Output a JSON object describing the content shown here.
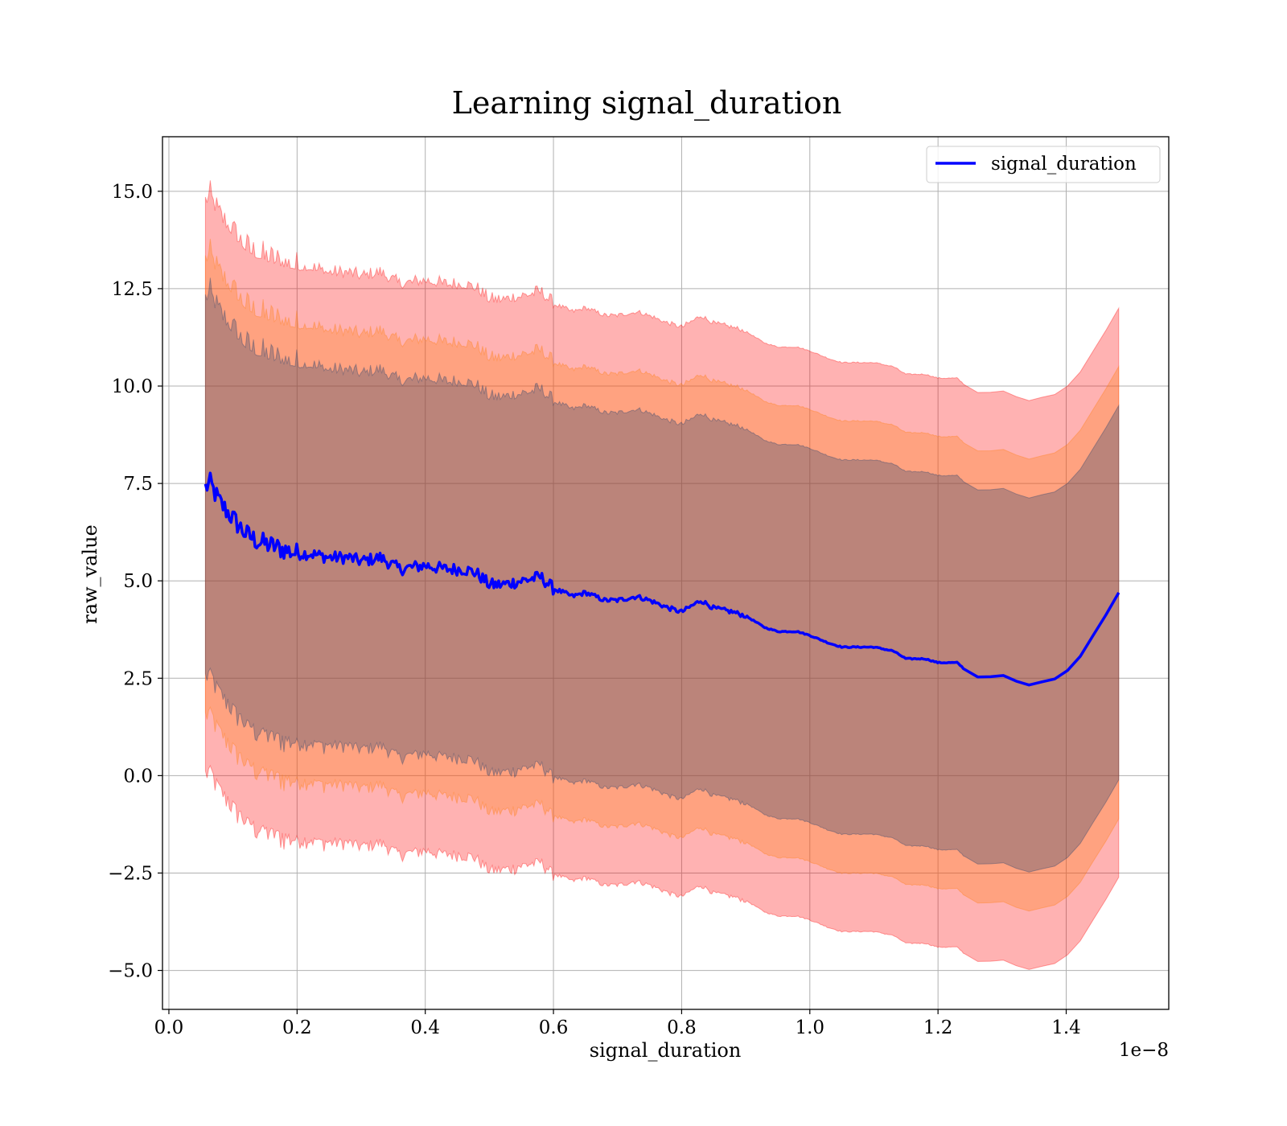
{
  "chart_data": {
    "type": "line",
    "title": "Learning signal_duration",
    "xlabel": "signal_duration",
    "ylabel": "raw_value",
    "x_offset_text": "1e−8",
    "xlim": [
      -0.01,
      1.56
    ],
    "ylim": [
      -6.0,
      16.4
    ],
    "grid": true,
    "legend_placement": "top-right",
    "x_ticks": [
      0.0,
      0.2,
      0.4,
      0.6,
      0.8,
      1.0,
      1.2,
      1.4
    ],
    "x_tick_labels": [
      "0.0",
      "0.2",
      "0.4",
      "0.6",
      "0.8",
      "1.0",
      "1.2",
      "1.4"
    ],
    "y_ticks": [
      15.0,
      12.5,
      10.0,
      7.5,
      5.0,
      2.5,
      0.0,
      -2.5,
      -5.0
    ],
    "y_tick_labels": [
      "15.0",
      "12.5",
      "10.0",
      "7.5",
      "5.0",
      "2.5",
      "0.0",
      "−2.5",
      "−5.0"
    ],
    "series": [
      {
        "name": "signal_duration",
        "color": "#0000ff",
        "x": [
          0.057,
          0.065,
          0.07,
          0.08,
          0.09,
          0.1,
          0.12,
          0.14,
          0.16,
          0.18,
          0.2,
          0.22,
          0.25,
          0.28,
          0.3,
          0.33,
          0.36,
          0.4,
          0.43,
          0.46,
          0.48,
          0.5,
          0.52,
          0.55,
          0.58,
          0.6,
          0.63,
          0.65,
          0.68,
          0.7,
          0.73,
          0.75,
          0.78,
          0.8,
          0.83,
          0.85,
          0.88,
          0.9,
          0.93,
          0.95,
          0.98,
          1.0,
          1.03,
          1.05,
          1.08,
          1.1,
          1.13,
          1.15,
          1.18,
          1.2,
          1.23,
          1.25,
          1.27,
          1.3,
          1.335,
          1.39,
          1.42,
          1.49
        ],
        "y": [
          7.4,
          7.5,
          7.3,
          7.0,
          6.8,
          6.6,
          6.2,
          6.0,
          5.9,
          5.8,
          5.7,
          5.7,
          5.6,
          5.6,
          5.5,
          5.6,
          5.3,
          5.4,
          5.3,
          5.3,
          5.2,
          4.9,
          4.9,
          5.0,
          5.1,
          4.8,
          4.6,
          4.7,
          4.5,
          4.5,
          4.6,
          4.5,
          4.3,
          4.2,
          4.5,
          4.3,
          4.2,
          4.1,
          3.8,
          3.7,
          3.7,
          3.6,
          3.4,
          3.3,
          3.3,
          3.3,
          3.2,
          3.0,
          3.0,
          2.9,
          2.9,
          2.6,
          2.5,
          2.6,
          2.3,
          2.5,
          3.0,
          4.9
        ]
      }
    ],
    "bands": [
      {
        "color": "#ff0000",
        "opacity": 0.3,
        "upper_offset": 7.3,
        "lower_offset": 7.3
      },
      {
        "color": "#ff7f0e",
        "opacity": 0.3,
        "upper_offset": 5.8,
        "lower_offset": 5.8
      },
      {
        "color": "#1f3f6e",
        "opacity": 0.3,
        "upper_offset": 4.8,
        "lower_offset": 4.8
      }
    ]
  }
}
